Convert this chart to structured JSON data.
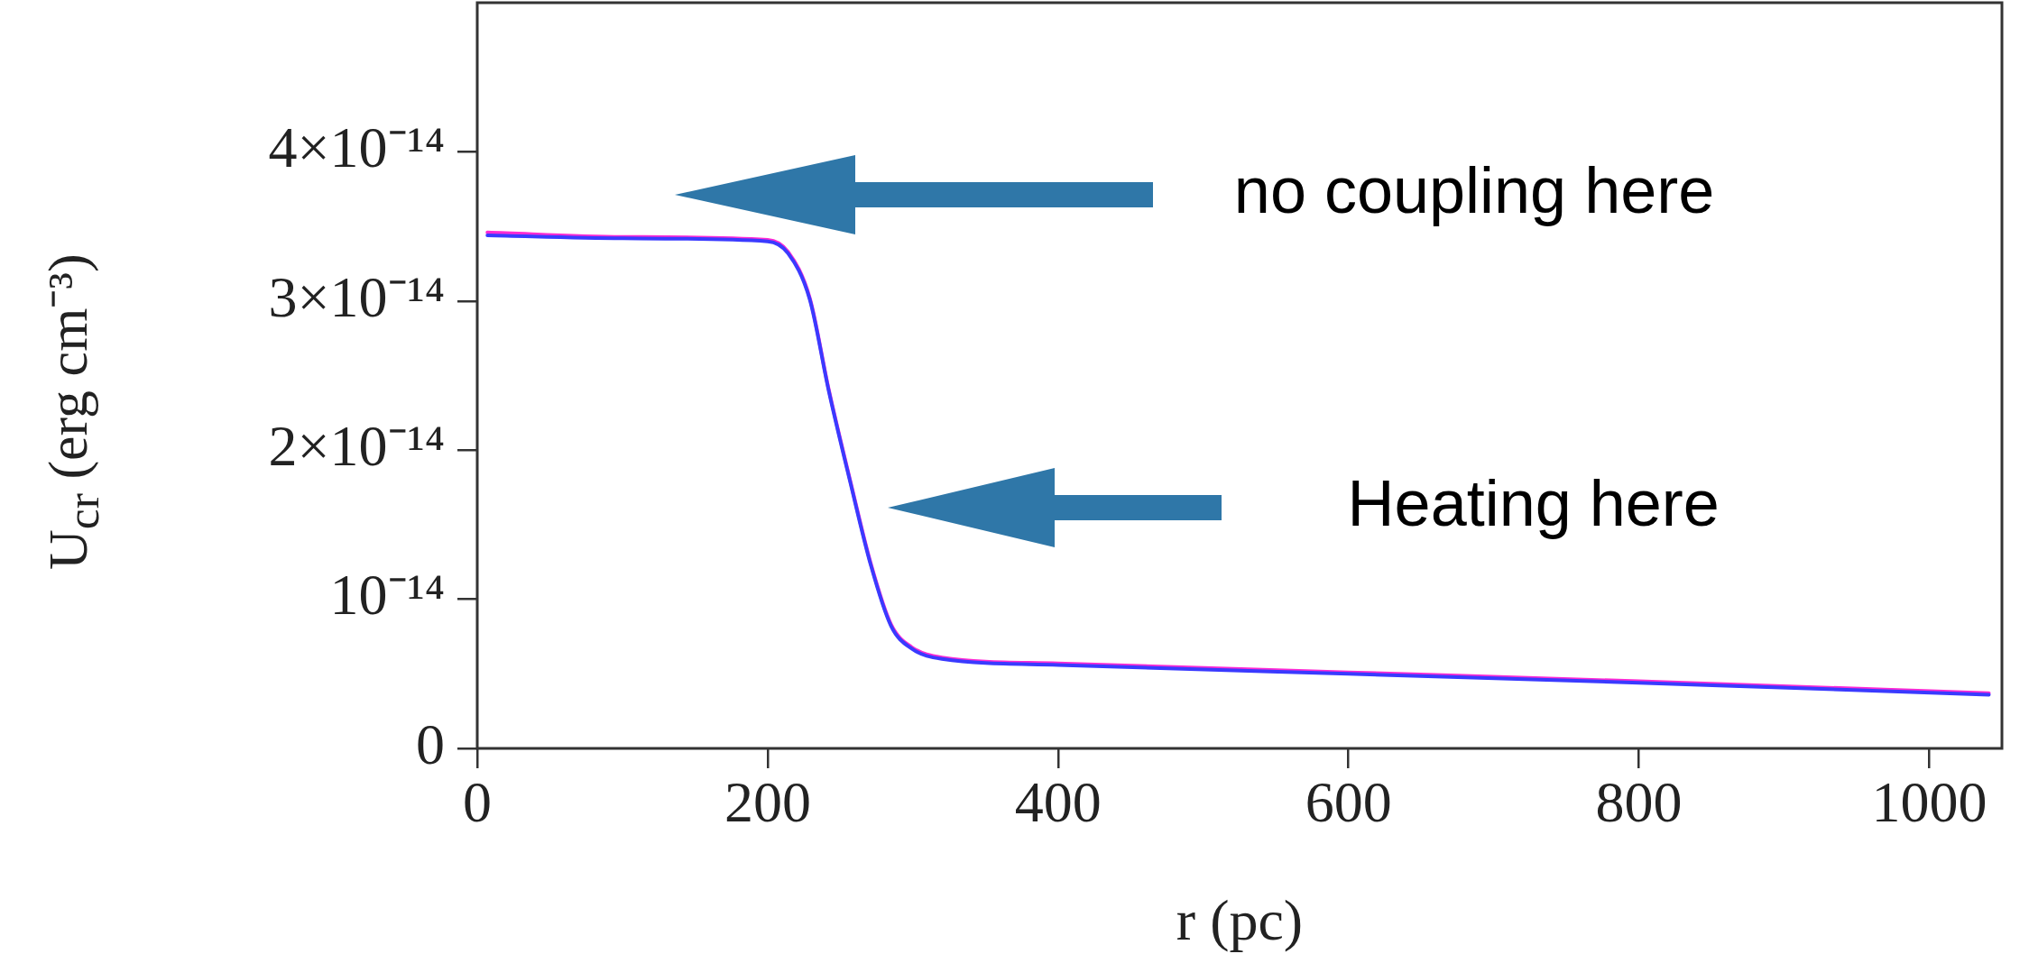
{
  "chart_data": {
    "type": "line",
    "xlabel": "r (pc)",
    "ylabel": "U$_{cr}$ (erg cm⁻³)",
    "xlim": [
      0,
      1050
    ],
    "ylim": [
      0,
      5e-14
    ],
    "xticks": [
      0,
      200,
      400,
      600,
      800,
      1000
    ],
    "yticks": [
      {
        "value": 0,
        "label": "0"
      },
      {
        "value": 1e-14,
        "label": "10⁻¹⁴"
      },
      {
        "value": 2e-14,
        "label": "2×10⁻¹⁴"
      },
      {
        "value": 3e-14,
        "label": "3×10⁻¹⁴"
      },
      {
        "value": 4e-14,
        "label": "4×10⁻¹⁴"
      }
    ],
    "grid": false,
    "legend": false,
    "marker": "none",
    "line_style": "solid",
    "series": [
      {
        "color": "#3a3aff",
        "x": [
          7,
          100,
          200,
          214,
          229,
          242,
          257,
          271,
          285,
          299,
          320,
          400,
          600,
          800,
          1041
        ],
        "values": [
          3.44e-14,
          3.42e-14,
          3.4e-14,
          3.32e-14,
          3.01e-14,
          2.4e-14,
          1.78e-14,
          1.23e-14,
          8.2e-15,
          6.7e-15,
          6e-15,
          5.6e-15,
          5e-15,
          4.4e-15,
          3.6e-15
        ]
      },
      {
        "color": "#ff2ad4",
        "x": [
          7,
          100,
          200,
          214,
          229,
          242,
          257,
          271,
          285,
          299,
          320,
          400,
          600,
          800,
          1041
        ],
        "values": [
          3.46e-14,
          3.43e-14,
          3.41e-14,
          3.33e-14,
          3.02e-14,
          2.41e-14,
          1.79e-14,
          1.24e-14,
          8.3e-15,
          6.8e-15,
          6.1e-15,
          5.7e-15,
          5.1e-15,
          4.5e-15,
          3.7e-15
        ]
      }
    ],
    "annotations": [
      "no coupling here",
      "Heating here"
    ]
  }
}
